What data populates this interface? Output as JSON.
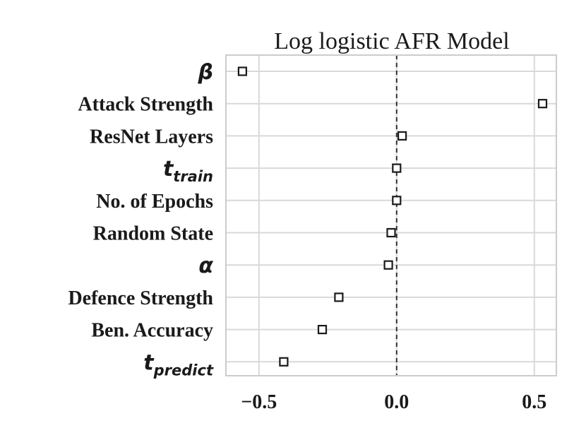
{
  "chart_data": {
    "type": "scatter",
    "title": "Log logistic AFR Model",
    "xlabel": "",
    "ylabel": "",
    "xlim": [
      -0.62,
      0.58
    ],
    "xticks": [
      -0.5,
      0.0,
      0.5
    ],
    "xtick_labels": [
      "−0.5",
      "0.0",
      "0.5"
    ],
    "grid": true,
    "reference_line": {
      "x": 0.0,
      "style": "dashed"
    },
    "marker": "open-square",
    "categories": [
      {
        "label": "β",
        "math": true,
        "base": "β",
        "sub": "",
        "value": -0.56
      },
      {
        "label": "Attack Strength",
        "math": false,
        "value": 0.53
      },
      {
        "label": "ResNet Layers",
        "math": false,
        "value": 0.02
      },
      {
        "label": "t train",
        "math": true,
        "base": "t",
        "sub": "train",
        "value": 0.0
      },
      {
        "label": "No. of Epochs",
        "math": false,
        "value": 0.0
      },
      {
        "label": "Random State",
        "math": false,
        "value": -0.02
      },
      {
        "label": "α",
        "math": true,
        "base": "α",
        "sub": "",
        "value": -0.03
      },
      {
        "label": "Defence Strength",
        "math": false,
        "value": -0.21
      },
      {
        "label": "Ben. Accuracy",
        "math": false,
        "value": -0.27
      },
      {
        "label": "t predict",
        "math": true,
        "base": "t",
        "sub": "predict",
        "value": -0.41
      }
    ]
  }
}
